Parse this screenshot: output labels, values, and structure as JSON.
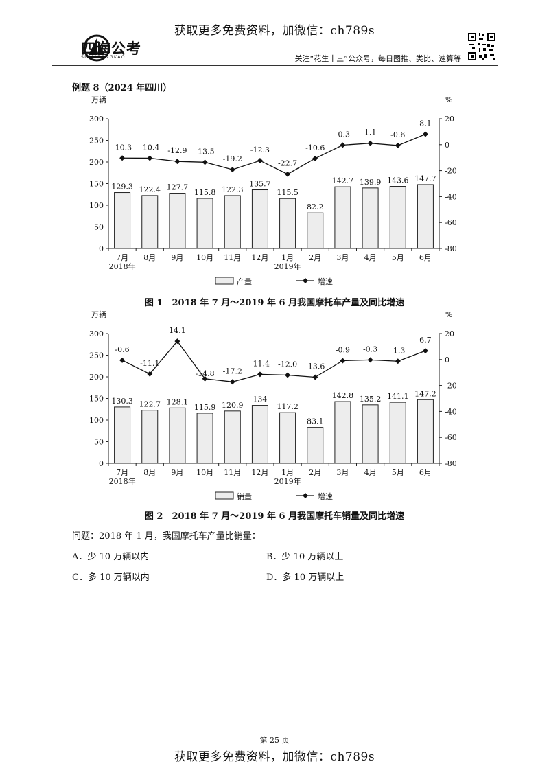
{
  "banner": {
    "top": "获取更多免费资料，加微信：ch789s",
    "bottom": "获取更多免费资料，加微信：ch789s"
  },
  "header": {
    "logo_text": "四海公考",
    "logo_sub": "SIHAIGONGKAO",
    "note": "关注“花生十三”公众号，每日图推、类比、速算等"
  },
  "example_title": "例题 8（2024 年四川）",
  "chart_data": [
    {
      "type": "bar",
      "title": "图 1　2018 年 7 月～2019 年 6 月我国摩托车产量及同比增速",
      "categories": [
        "7月",
        "8月",
        "9月",
        "10月",
        "11月",
        "12月",
        "1月",
        "2月",
        "3月",
        "4月",
        "5月",
        "6月"
      ],
      "year_labels": [
        "2018年",
        "2019年"
      ],
      "left_axis": {
        "unit": "万辆",
        "ylim": [
          0,
          300
        ],
        "ticks": [
          "0",
          "50",
          "100",
          "150",
          "200",
          "250",
          "300"
        ]
      },
      "right_axis": {
        "unit": "%",
        "ylim": [
          -80,
          20
        ],
        "ticks": [
          "-80",
          "-60",
          "-40",
          "-20",
          "0",
          "20"
        ]
      },
      "series": [
        {
          "name": "产量",
          "type": "bar",
          "axis": "left",
          "values": [
            129.3,
            122.4,
            127.7,
            115.8,
            122.3,
            135.7,
            115.5,
            82.2,
            142.7,
            139.9,
            143.6,
            147.7
          ],
          "labels": [
            "129.3",
            "122.4",
            "127.7",
            "115.8",
            "122.3",
            "135.7",
            "115.5",
            "82.2",
            "142.7",
            "139.9",
            "143.6",
            "147.7"
          ]
        },
        {
          "name": "增速",
          "type": "line",
          "axis": "right",
          "values": [
            -10.3,
            -10.4,
            -12.9,
            -13.5,
            -19.2,
            -12.3,
            -22.7,
            -10.6,
            -0.3,
            1.1,
            -0.6,
            8.1
          ],
          "labels": [
            "-10.3",
            "-10.4",
            "-12.9",
            "-13.5",
            "-19.2",
            "-12.3",
            "-22.7",
            "-10.6",
            "-0.3",
            "1.1",
            "-0.6",
            "8.1"
          ]
        }
      ],
      "legend": "bottom-center",
      "grid": false
    },
    {
      "type": "bar",
      "title": "图 2　2018 年 7 月～2019 年 6 月我国摩托车销量及同比增速",
      "categories": [
        "7月",
        "8月",
        "9月",
        "10月",
        "11月",
        "12月",
        "1月",
        "2月",
        "3月",
        "4月",
        "5月",
        "6月"
      ],
      "year_labels": [
        "2018年",
        "2019年"
      ],
      "left_axis": {
        "unit": "万辆",
        "ylim": [
          0,
          300
        ],
        "ticks": [
          "0",
          "50",
          "100",
          "150",
          "200",
          "250",
          "300"
        ]
      },
      "right_axis": {
        "unit": "%",
        "ylim": [
          -80,
          20
        ],
        "ticks": [
          "-80",
          "-60",
          "-40",
          "-20",
          "0",
          "20"
        ]
      },
      "series": [
        {
          "name": "销量",
          "type": "bar",
          "axis": "left",
          "values": [
            130.3,
            122.7,
            128.1,
            115.9,
            120.9,
            134,
            117.2,
            83.1,
            142.8,
            135.2,
            141.1,
            147.2
          ],
          "labels": [
            "130.3",
            "122.7",
            "128.1",
            "115.9",
            "120.9",
            "134",
            "117.2",
            "83.1",
            "142.8",
            "135.2",
            "141.1",
            "147.2"
          ]
        },
        {
          "name": "增速",
          "type": "line",
          "axis": "right",
          "values": [
            -0.6,
            -11.1,
            14.1,
            -14.8,
            -17.2,
            -11.4,
            -12.0,
            -13.6,
            -0.9,
            -0.3,
            -1.3,
            6.7
          ],
          "labels": [
            "-0.6",
            "-11.1",
            "14.1",
            "-14.8",
            "-17.2",
            "-11.4",
            "-12.0",
            "-13.6",
            "-0.9",
            "-0.3",
            "-1.3",
            "6.7"
          ]
        }
      ],
      "legend": "bottom-center",
      "grid": false
    }
  ],
  "question": {
    "stem": "问题：2018 年 1 月，我国摩托车产量比销量：",
    "options": [
      {
        "label": "A．少 10 万辆以内"
      },
      {
        "label": "B．少 10 万辆以上"
      },
      {
        "label": "C．多 10 万辆以内"
      },
      {
        "label": "D．多 10 万辆以上"
      }
    ]
  },
  "page_number": "第 25 页",
  "colors": {
    "bar_fill": "#ededed",
    "bar_stroke": "#222222",
    "line": "#111111",
    "text": "#111111"
  }
}
